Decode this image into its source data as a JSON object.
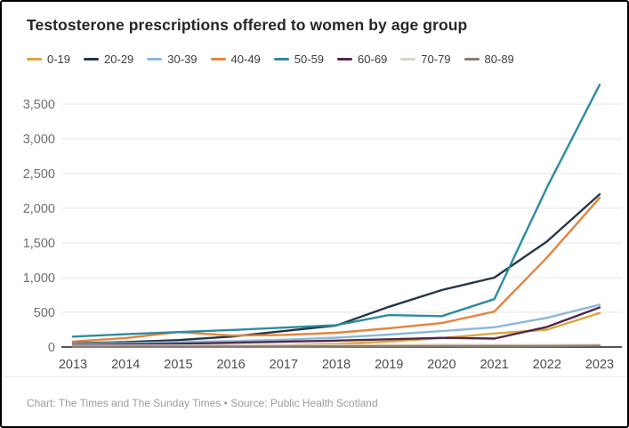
{
  "title": "Testosterone prescriptions offered to women by age group",
  "footer": {
    "text": "Chart: The Times and The Sunday Times • Source: Public Health Scotland"
  },
  "colors": {
    "background": "#ffffff",
    "border": "#000000",
    "gridline": "#e4e4e4",
    "axis_line": "#1a1a1a",
    "title_text": "#262626",
    "tick_text": "#6f6f6f",
    "xlabel_text": "#4c4c4c",
    "footer_text": "#9b9b9b"
  },
  "chart_data": {
    "type": "line",
    "title": "Testosterone prescriptions offered to women by age group",
    "xlabel": "",
    "ylabel": "",
    "x": [
      2013,
      2014,
      2015,
      2016,
      2017,
      2018,
      2019,
      2020,
      2021,
      2022,
      2023
    ],
    "x_tick_labels": [
      "2013",
      "2014",
      "2015",
      "2016",
      "2017",
      "2018",
      "2019",
      "2020",
      "2021",
      "2022",
      "2023"
    ],
    "series": [
      {
        "name": "0-19",
        "color": "#d9a73c",
        "values": [
          10,
          12,
          16,
          22,
          30,
          45,
          80,
          130,
          195,
          250,
          490
        ]
      },
      {
        "name": "20-29",
        "color": "#233748",
        "values": [
          55,
          70,
          100,
          150,
          230,
          310,
          580,
          820,
          1000,
          1520,
          2200
        ]
      },
      {
        "name": "30-39",
        "color": "#8bb8dc",
        "values": [
          45,
          55,
          70,
          85,
          105,
          135,
          180,
          230,
          285,
          420,
          610
        ]
      },
      {
        "name": "40-49",
        "color": "#e5833c",
        "values": [
          80,
          130,
          215,
          165,
          175,
          205,
          270,
          345,
          510,
          1290,
          2150
        ]
      },
      {
        "name": "50-59",
        "color": "#2c8c9e",
        "values": [
          150,
          185,
          215,
          245,
          280,
          315,
          460,
          445,
          690,
          2300,
          3780
        ]
      },
      {
        "name": "60-69",
        "color": "#53284a",
        "values": [
          30,
          38,
          48,
          62,
          78,
          92,
          112,
          132,
          122,
          290,
          570
        ]
      },
      {
        "name": "70-79",
        "color": "#dcd2c3",
        "values": [
          18,
          20,
          22,
          24,
          26,
          28,
          30,
          33,
          30,
          28,
          32
        ]
      },
      {
        "name": "80-89",
        "color": "#8c7b70",
        "values": [
          5,
          6,
          7,
          8,
          9,
          10,
          12,
          14,
          13,
          14,
          18
        ]
      }
    ],
    "ylim": [
      0,
      3800
    ],
    "yticks": [
      0,
      500,
      1000,
      1500,
      2000,
      2500,
      3000,
      3500
    ],
    "ytick_labels": [
      "0",
      "500",
      "1,000",
      "1,500",
      "2,000",
      "2,500",
      "3,000",
      "3,500"
    ],
    "grid": true,
    "legend_position": "top-left"
  }
}
